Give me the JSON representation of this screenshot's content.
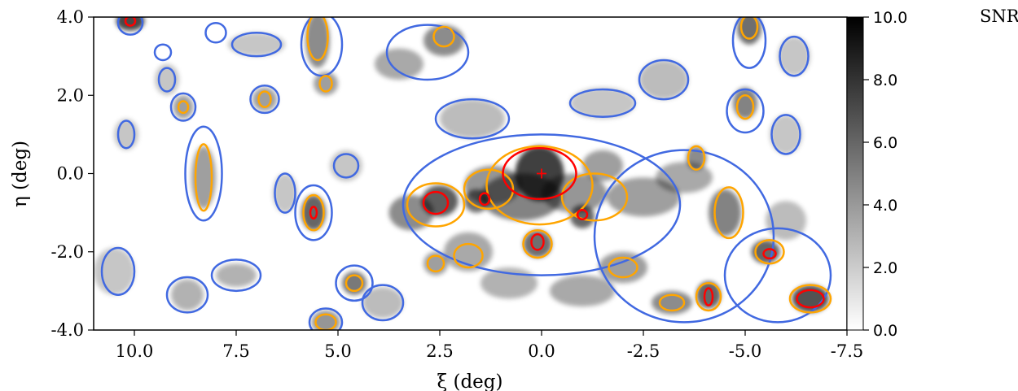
{
  "chart_data": {
    "type": "heatmap",
    "title": "",
    "xlabel": "ξ (deg)",
    "ylabel": "η (deg)",
    "xlim": [
      11.0,
      -7.5
    ],
    "ylim": [
      -4.0,
      4.0
    ],
    "x_axis_inverted": true,
    "xticks": [
      {
        "value": 10.0,
        "label": "10.0"
      },
      {
        "value": 7.5,
        "label": "7.5"
      },
      {
        "value": 5.0,
        "label": "5.0"
      },
      {
        "value": 2.5,
        "label": "2.5"
      },
      {
        "value": 0.0,
        "label": "0.0"
      },
      {
        "value": -2.5,
        "label": "-2.5"
      },
      {
        "value": -5.0,
        "label": "-5.0"
      },
      {
        "value": -7.5,
        "label": "-7.5"
      }
    ],
    "yticks": [
      {
        "value": 4.0,
        "label": "4.0"
      },
      {
        "value": 2.0,
        "label": "2.0"
      },
      {
        "value": 0.0,
        "label": "0.0"
      },
      {
        "value": -2.0,
        "label": "-2.0"
      },
      {
        "value": -4.0,
        "label": "-4.0"
      }
    ],
    "colorbar": {
      "title": "SNR",
      "range": [
        0.0,
        10.0
      ],
      "colormap": "white-to-black",
      "ticks": [
        {
          "value": 10.0,
          "label": "10.0"
        },
        {
          "value": 8.0,
          "label": "8.0"
        },
        {
          "value": 6.0,
          "label": "6.0"
        },
        {
          "value": 4.0,
          "label": "4.0"
        },
        {
          "value": 2.0,
          "label": "2.0"
        },
        {
          "value": 0.0,
          "label": "0.0"
        }
      ]
    },
    "contour_colors": {
      "low": "#4169e1",
      "mid": "#ffa500",
      "high": "#ff0000"
    },
    "center_marker": {
      "xi": 0.0,
      "eta": 0.0,
      "symbol": "+",
      "color": "#ff0000"
    },
    "blobs": [
      {
        "xi": 0.05,
        "eta": 0.0,
        "snr": 12,
        "sx": 0.6,
        "sy": 0.7
      },
      {
        "xi": 0.5,
        "eta": -0.6,
        "snr": 6.5,
        "sx": 1.0,
        "sy": 0.6
      },
      {
        "xi": 1.2,
        "eta": -0.3,
        "snr": 5.5,
        "sx": 0.7,
        "sy": 0.5
      },
      {
        "xi": 2.5,
        "eta": -0.7,
        "snr": 8.5,
        "sx": 0.45,
        "sy": 0.4
      },
      {
        "xi": 3.2,
        "eta": -1.0,
        "snr": 6.0,
        "sx": 0.55,
        "sy": 0.45
      },
      {
        "xi": 1.6,
        "eta": -0.7,
        "snr": 7.5,
        "sx": 0.3,
        "sy": 0.3
      },
      {
        "xi": -1.0,
        "eta": -1.1,
        "snr": 8.0,
        "sx": 0.3,
        "sy": 0.3
      },
      {
        "xi": -0.8,
        "eta": -0.5,
        "snr": 5.5,
        "sx": 0.8,
        "sy": 0.5
      },
      {
        "xi": -1.5,
        "eta": 0.2,
        "snr": 5.0,
        "sx": 0.5,
        "sy": 0.4
      },
      {
        "xi": 0.1,
        "eta": -1.8,
        "snr": 7.5,
        "sx": 0.35,
        "sy": 0.35
      },
      {
        "xi": -2.5,
        "eta": -0.6,
        "snr": 5.0,
        "sx": 0.9,
        "sy": 0.5
      },
      {
        "xi": -3.5,
        "eta": -0.1,
        "snr": 4.5,
        "sx": 0.7,
        "sy": 0.4
      },
      {
        "xi": -3.8,
        "eta": 0.4,
        "snr": 6.0,
        "sx": 0.25,
        "sy": 0.3
      },
      {
        "xi": -4.5,
        "eta": -1.0,
        "snr": 6.5,
        "sx": 0.4,
        "sy": 0.6
      },
      {
        "xi": -5.5,
        "eta": -2.0,
        "snr": 8.0,
        "sx": 0.35,
        "sy": 0.3
      },
      {
        "xi": -6.6,
        "eta": -3.2,
        "snr": 9.0,
        "sx": 0.45,
        "sy": 0.35
      },
      {
        "xi": -4.1,
        "eta": -3.1,
        "snr": 8.0,
        "sx": 0.3,
        "sy": 0.35
      },
      {
        "xi": -3.2,
        "eta": -3.3,
        "snr": 6.0,
        "sx": 0.5,
        "sy": 0.3
      },
      {
        "xi": -2.0,
        "eta": -2.4,
        "snr": 5.0,
        "sx": 0.6,
        "sy": 0.4
      },
      {
        "xi": -1.0,
        "eta": -3.0,
        "snr": 4.5,
        "sx": 0.8,
        "sy": 0.4
      },
      {
        "xi": 0.8,
        "eta": -2.8,
        "snr": 4.0,
        "sx": 0.7,
        "sy": 0.4
      },
      {
        "xi": 1.8,
        "eta": -2.0,
        "snr": 4.5,
        "sx": 0.6,
        "sy": 0.5
      },
      {
        "xi": 2.6,
        "eta": -2.3,
        "snr": 5.0,
        "sx": 0.3,
        "sy": 0.3
      },
      {
        "xi": 5.6,
        "eta": -1.0,
        "snr": 8.0,
        "sx": 0.3,
        "sy": 0.45
      },
      {
        "xi": 4.6,
        "eta": -2.8,
        "snr": 7.0,
        "sx": 0.3,
        "sy": 0.3
      },
      {
        "xi": 8.3,
        "eta": -0.1,
        "snr": 5.0,
        "sx": 0.3,
        "sy": 0.8
      },
      {
        "xi": 10.1,
        "eta": 3.9,
        "snr": 9.5,
        "sx": 0.35,
        "sy": 0.25
      },
      {
        "xi": 5.5,
        "eta": 3.4,
        "snr": 6.0,
        "sx": 0.3,
        "sy": 0.7
      },
      {
        "xi": 2.4,
        "eta": 3.4,
        "snr": 6.0,
        "sx": 0.5,
        "sy": 0.4
      },
      {
        "xi": 3.5,
        "eta": 2.8,
        "snr": 4.5,
        "sx": 0.6,
        "sy": 0.4
      },
      {
        "xi": -5.1,
        "eta": 3.7,
        "snr": 7.5,
        "sx": 0.3,
        "sy": 0.4
      },
      {
        "xi": -5.0,
        "eta": 1.8,
        "snr": 6.5,
        "sx": 0.3,
        "sy": 0.4
      },
      {
        "xi": 8.8,
        "eta": 1.7,
        "snr": 5.0,
        "sx": 0.25,
        "sy": 0.3
      },
      {
        "xi": 6.8,
        "eta": 1.9,
        "snr": 5.0,
        "sx": 0.3,
        "sy": 0.3
      },
      {
        "xi": 5.3,
        "eta": 2.3,
        "snr": 5.0,
        "sx": 0.3,
        "sy": 0.3
      },
      {
        "xi": 1.7,
        "eta": 1.4,
        "snr": 3.5,
        "sx": 0.8,
        "sy": 0.5
      },
      {
        "xi": -1.5,
        "eta": 1.8,
        "snr": 3.0,
        "sx": 0.8,
        "sy": 0.4
      },
      {
        "xi": -3.0,
        "eta": 2.4,
        "snr": 3.5,
        "sx": 0.6,
        "sy": 0.5
      },
      {
        "xi": 5.3,
        "eta": -3.8,
        "snr": 5.5,
        "sx": 0.35,
        "sy": 0.3
      },
      {
        "xi": 7.5,
        "eta": -2.6,
        "snr": 4.0,
        "sx": 0.5,
        "sy": 0.3
      },
      {
        "xi": 8.7,
        "eta": -3.1,
        "snr": 4.0,
        "sx": 0.4,
        "sy": 0.4
      },
      {
        "xi": 10.5,
        "eta": -2.5,
        "snr": 3.0,
        "sx": 0.5,
        "sy": 0.6
      },
      {
        "xi": 9.2,
        "eta": 2.4,
        "snr": 3.0,
        "sx": 0.3,
        "sy": 0.4
      },
      {
        "xi": 10.2,
        "eta": 1.0,
        "snr": 3.0,
        "sx": 0.3,
        "sy": 0.4
      },
      {
        "xi": 7.0,
        "eta": 3.3,
        "snr": 3.0,
        "sx": 0.7,
        "sy": 0.3
      },
      {
        "xi": 4.8,
        "eta": 0.2,
        "snr": 3.0,
        "sx": 0.4,
        "sy": 0.4
      },
      {
        "xi": 6.3,
        "eta": -0.5,
        "snr": 3.0,
        "sx": 0.3,
        "sy": 0.5
      },
      {
        "xi": -6.0,
        "eta": 1.0,
        "snr": 3.0,
        "sx": 0.4,
        "sy": 0.5
      },
      {
        "xi": -6.2,
        "eta": 3.0,
        "snr": 3.0,
        "sx": 0.4,
        "sy": 0.5
      },
      {
        "xi": 3.9,
        "eta": -3.3,
        "snr": 3.5,
        "sx": 0.5,
        "sy": 0.4
      },
      {
        "xi": -6.0,
        "eta": -1.2,
        "snr": 3.5,
        "sx": 0.5,
        "sy": 0.5
      }
    ],
    "contours": {
      "high": [
        {
          "xi": 0.05,
          "eta": 0.0,
          "rx": 0.9,
          "ry": 0.65
        },
        {
          "xi": 2.6,
          "eta": -0.75,
          "rx": 0.3,
          "ry": 0.28
        },
        {
          "xi": 1.4,
          "eta": -0.65,
          "rx": 0.12,
          "ry": 0.15
        },
        {
          "xi": -1.0,
          "eta": -1.05,
          "rx": 0.12,
          "ry": 0.12
        },
        {
          "xi": 0.1,
          "eta": -1.75,
          "rx": 0.15,
          "ry": 0.2
        },
        {
          "xi": 5.6,
          "eta": -1.0,
          "rx": 0.08,
          "ry": 0.15
        },
        {
          "xi": -5.6,
          "eta": -2.05,
          "rx": 0.15,
          "ry": 0.12
        },
        {
          "xi": -6.6,
          "eta": -3.2,
          "rx": 0.33,
          "ry": 0.22
        },
        {
          "xi": -4.1,
          "eta": -3.15,
          "rx": 0.1,
          "ry": 0.22
        },
        {
          "xi": 10.1,
          "eta": 3.9,
          "rx": 0.12,
          "ry": 0.12
        }
      ],
      "mid": [
        {
          "xi": 0.05,
          "eta": -0.3,
          "rx": 1.3,
          "ry": 1.0
        },
        {
          "xi": 2.6,
          "eta": -0.8,
          "rx": 0.7,
          "ry": 0.55
        },
        {
          "xi": 1.3,
          "eta": -0.4,
          "rx": 0.6,
          "ry": 0.5
        },
        {
          "xi": -1.3,
          "eta": -0.6,
          "rx": 0.8,
          "ry": 0.6
        },
        {
          "xi": -3.8,
          "eta": 0.4,
          "rx": 0.2,
          "ry": 0.3
        },
        {
          "xi": -4.6,
          "eta": -1.0,
          "rx": 0.35,
          "ry": 0.65
        },
        {
          "xi": -5.6,
          "eta": -2.0,
          "rx": 0.35,
          "ry": 0.3
        },
        {
          "xi": -6.6,
          "eta": -3.2,
          "rx": 0.5,
          "ry": 0.35
        },
        {
          "xi": -4.1,
          "eta": -3.15,
          "rx": 0.3,
          "ry": 0.35
        },
        {
          "xi": -3.2,
          "eta": -3.3,
          "rx": 0.3,
          "ry": 0.2
        },
        {
          "xi": 0.1,
          "eta": -1.8,
          "rx": 0.35,
          "ry": 0.35
        },
        {
          "xi": 5.6,
          "eta": -1.0,
          "rx": 0.25,
          "ry": 0.45
        },
        {
          "xi": 8.3,
          "eta": -0.1,
          "rx": 0.2,
          "ry": 0.85
        },
        {
          "xi": 5.5,
          "eta": 3.5,
          "rx": 0.25,
          "ry": 0.6
        },
        {
          "xi": 2.4,
          "eta": 3.5,
          "rx": 0.25,
          "ry": 0.25
        },
        {
          "xi": -5.1,
          "eta": 3.75,
          "rx": 0.2,
          "ry": 0.3
        },
        {
          "xi": -5.0,
          "eta": 1.7,
          "rx": 0.2,
          "ry": 0.3
        },
        {
          "xi": 8.8,
          "eta": 1.7,
          "rx": 0.12,
          "ry": 0.15
        },
        {
          "xi": 6.8,
          "eta": 1.9,
          "rx": 0.15,
          "ry": 0.2
        },
        {
          "xi": 5.3,
          "eta": 2.3,
          "rx": 0.15,
          "ry": 0.2
        },
        {
          "xi": 4.6,
          "eta": -2.8,
          "rx": 0.2,
          "ry": 0.2
        },
        {
          "xi": 5.3,
          "eta": -3.8,
          "rx": 0.25,
          "ry": 0.2
        },
        {
          "xi": 2.6,
          "eta": -2.3,
          "rx": 0.2,
          "ry": 0.2
        },
        {
          "xi": 1.8,
          "eta": -2.1,
          "rx": 0.35,
          "ry": 0.3
        },
        {
          "xi": -2.0,
          "eta": -2.4,
          "rx": 0.35,
          "ry": 0.25
        }
      ],
      "low": [
        {
          "xi": 0.0,
          "eta": -0.8,
          "rx": 3.4,
          "ry": 1.8
        },
        {
          "xi": -3.5,
          "eta": -1.6,
          "rx": 2.2,
          "ry": 2.2
        },
        {
          "xi": -5.8,
          "eta": -2.6,
          "rx": 1.3,
          "ry": 1.2
        },
        {
          "xi": 5.6,
          "eta": -1.0,
          "rx": 0.45,
          "ry": 0.7
        },
        {
          "xi": 8.3,
          "eta": 0.0,
          "rx": 0.45,
          "ry": 1.2
        },
        {
          "xi": 10.1,
          "eta": 3.85,
          "rx": 0.3,
          "ry": 0.3
        },
        {
          "xi": 5.4,
          "eta": 3.3,
          "rx": 0.5,
          "ry": 0.8
        },
        {
          "xi": 2.8,
          "eta": 3.1,
          "rx": 1.0,
          "ry": 0.7
        },
        {
          "xi": -5.1,
          "eta": 3.4,
          "rx": 0.4,
          "ry": 0.7
        },
        {
          "xi": -5.0,
          "eta": 1.6,
          "rx": 0.45,
          "ry": 0.55
        },
        {
          "xi": 6.8,
          "eta": 1.9,
          "rx": 0.35,
          "ry": 0.35
        },
        {
          "xi": 8.8,
          "eta": 1.7,
          "rx": 0.3,
          "ry": 0.35
        },
        {
          "xi": 1.7,
          "eta": 1.4,
          "rx": 0.9,
          "ry": 0.5
        },
        {
          "xi": -1.5,
          "eta": 1.8,
          "rx": 0.8,
          "ry": 0.35
        },
        {
          "xi": -3.0,
          "eta": 2.4,
          "rx": 0.6,
          "ry": 0.5
        },
        {
          "xi": 4.6,
          "eta": -2.8,
          "rx": 0.45,
          "ry": 0.45
        },
        {
          "xi": 5.3,
          "eta": -3.8,
          "rx": 0.4,
          "ry": 0.35
        },
        {
          "xi": 7.5,
          "eta": -2.6,
          "rx": 0.6,
          "ry": 0.4
        },
        {
          "xi": 8.7,
          "eta": -3.1,
          "rx": 0.5,
          "ry": 0.45
        },
        {
          "xi": 10.4,
          "eta": -2.5,
          "rx": 0.4,
          "ry": 0.6
        },
        {
          "xi": 9.2,
          "eta": 2.4,
          "rx": 0.2,
          "ry": 0.3
        },
        {
          "xi": 10.2,
          "eta": 1.0,
          "rx": 0.2,
          "ry": 0.35
        },
        {
          "xi": 7.0,
          "eta": 3.3,
          "rx": 0.6,
          "ry": 0.3
        },
        {
          "xi": 4.8,
          "eta": 0.2,
          "rx": 0.3,
          "ry": 0.3
        },
        {
          "xi": 6.3,
          "eta": -0.5,
          "rx": 0.25,
          "ry": 0.5
        },
        {
          "xi": -6.0,
          "eta": 1.0,
          "rx": 0.35,
          "ry": 0.5
        },
        {
          "xi": -6.2,
          "eta": 3.0,
          "rx": 0.35,
          "ry": 0.5
        },
        {
          "xi": 3.9,
          "eta": -3.3,
          "rx": 0.5,
          "ry": 0.45
        },
        {
          "xi": 8.0,
          "eta": 3.6,
          "rx": 0.25,
          "ry": 0.25
        },
        {
          "xi": 9.3,
          "eta": 3.1,
          "rx": 0.2,
          "ry": 0.2
        }
      ]
    }
  }
}
